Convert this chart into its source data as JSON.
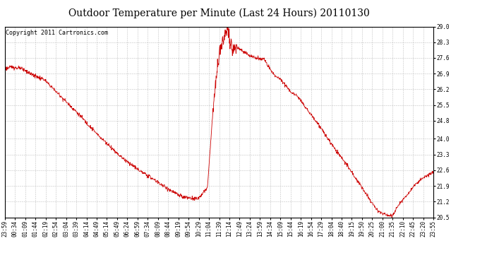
{
  "title": "Outdoor Temperature per Minute (Last 24 Hours) 20110130",
  "copyright_text": "Copyright 2011 Cartronics.com",
  "line_color": "#cc0000",
  "background_color": "#ffffff",
  "plot_bg_color": "#ffffff",
  "grid_color": "#bbbbbb",
  "yticks": [
    20.5,
    21.2,
    21.9,
    22.6,
    23.3,
    24.0,
    24.8,
    25.5,
    26.2,
    26.9,
    27.6,
    28.3,
    29.0
  ],
  "xtick_labels": [
    "23:59",
    "00:34",
    "01:09",
    "01:44",
    "02:19",
    "02:54",
    "03:04",
    "03:39",
    "04:14",
    "04:49",
    "05:14",
    "05:49",
    "06:24",
    "06:59",
    "07:34",
    "08:09",
    "08:44",
    "09:19",
    "09:54",
    "10:29",
    "11:04",
    "11:39",
    "12:14",
    "12:49",
    "13:24",
    "13:59",
    "14:34",
    "15:09",
    "15:44",
    "16:19",
    "16:54",
    "17:29",
    "18:04",
    "18:40",
    "19:15",
    "19:50",
    "20:25",
    "21:00",
    "21:35",
    "22:10",
    "22:45",
    "23:20",
    "23:55"
  ],
  "ymin": 20.5,
  "ymax": 29.0,
  "title_fontsize": 10,
  "tick_fontsize": 5.5,
  "copyright_fontsize": 6.0,
  "control_x": [
    0,
    25,
    60,
    100,
    130,
    180,
    240,
    310,
    390,
    450,
    510,
    555,
    575,
    595,
    625,
    650,
    680,
    700,
    720,
    735,
    748,
    758,
    768,
    785,
    810,
    840,
    870,
    900,
    930,
    960,
    990,
    1020,
    1050,
    1080,
    1110,
    1140,
    1170,
    1200,
    1230,
    1255,
    1270,
    1285,
    1300,
    1320,
    1350,
    1380,
    1410,
    1439
  ],
  "control_y": [
    27.1,
    27.2,
    27.1,
    26.8,
    26.65,
    26.0,
    25.2,
    24.2,
    23.2,
    22.6,
    22.1,
    21.7,
    21.55,
    21.4,
    21.35,
    21.35,
    21.8,
    25.5,
    27.8,
    28.35,
    29.0,
    28.1,
    28.15,
    28.05,
    27.8,
    27.6,
    27.55,
    26.9,
    26.6,
    26.1,
    25.8,
    25.2,
    24.7,
    24.1,
    23.5,
    23.0,
    22.4,
    21.8,
    21.2,
    20.75,
    20.65,
    20.6,
    20.55,
    21.0,
    21.5,
    22.0,
    22.3,
    22.5
  ]
}
